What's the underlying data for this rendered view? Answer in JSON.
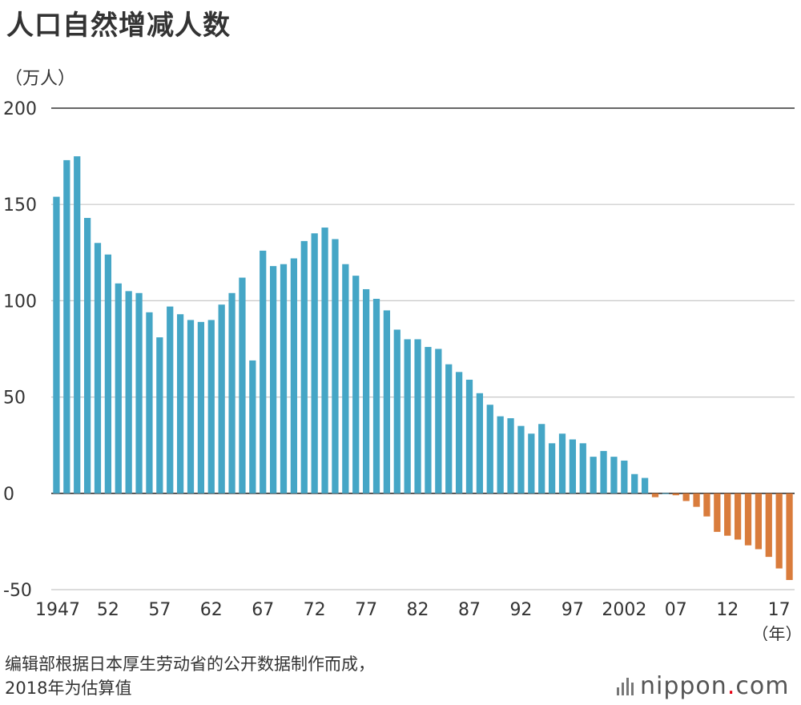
{
  "title": "人口自然增减人数",
  "source_line1": "编辑部根据日本厚生劳动省的公开数据制作而成，",
  "source_line2": "2018年为估算值",
  "logo": {
    "name": "nippon",
    "dot": ".",
    "suffix": "com"
  },
  "chart_data": {
    "type": "bar",
    "ylabel": "（万人）",
    "xlabel": "（年）",
    "ylim": [
      -50,
      200
    ],
    "yticks": [
      200,
      150,
      100,
      50,
      0,
      -50
    ],
    "grid": true,
    "legend": "none",
    "colors": {
      "positive": "#45a6c6",
      "negative": "#d97c3c"
    },
    "xtick_labels": [
      {
        "year": 1947,
        "label": "1947"
      },
      {
        "year": 1952,
        "label": "52"
      },
      {
        "year": 1957,
        "label": "57"
      },
      {
        "year": 1962,
        "label": "62"
      },
      {
        "year": 1967,
        "label": "67"
      },
      {
        "year": 1972,
        "label": "72"
      },
      {
        "year": 1977,
        "label": "77"
      },
      {
        "year": 1982,
        "label": "82"
      },
      {
        "year": 1987,
        "label": "87"
      },
      {
        "year": 1992,
        "label": "92"
      },
      {
        "year": 1997,
        "label": "97"
      },
      {
        "year": 2002,
        "label": "2002"
      },
      {
        "year": 2007,
        "label": "07"
      },
      {
        "year": 2012,
        "label": "12"
      },
      {
        "year": 2017,
        "label": "17"
      }
    ],
    "x": [
      1947,
      1948,
      1949,
      1950,
      1951,
      1952,
      1953,
      1954,
      1955,
      1956,
      1957,
      1958,
      1959,
      1960,
      1961,
      1962,
      1963,
      1964,
      1965,
      1966,
      1967,
      1968,
      1969,
      1970,
      1971,
      1972,
      1973,
      1974,
      1975,
      1976,
      1977,
      1978,
      1979,
      1980,
      1981,
      1982,
      1983,
      1984,
      1985,
      1986,
      1987,
      1988,
      1989,
      1990,
      1991,
      1992,
      1993,
      1994,
      1995,
      1996,
      1997,
      1998,
      1999,
      2000,
      2001,
      2002,
      2003,
      2004,
      2005,
      2006,
      2007,
      2008,
      2009,
      2010,
      2011,
      2012,
      2013,
      2014,
      2015,
      2016,
      2017,
      2018
    ],
    "values": [
      154,
      173,
      175,
      143,
      130,
      124,
      109,
      105,
      104,
      94,
      81,
      97,
      93,
      90,
      89,
      90,
      98,
      104,
      112,
      69,
      126,
      118,
      119,
      122,
      131,
      135,
      138,
      132,
      119,
      113,
      106,
      101,
      95,
      85,
      80,
      80,
      76,
      75,
      67,
      63,
      59,
      52,
      46,
      40,
      39,
      35,
      31,
      36,
      26,
      31,
      28,
      26,
      19,
      22,
      19,
      17,
      10,
      8,
      -2,
      0.1,
      -1,
      -4,
      -7,
      -12,
      -20,
      -22,
      -24,
      -27,
      -29,
      -33,
      -39,
      -45
    ]
  }
}
